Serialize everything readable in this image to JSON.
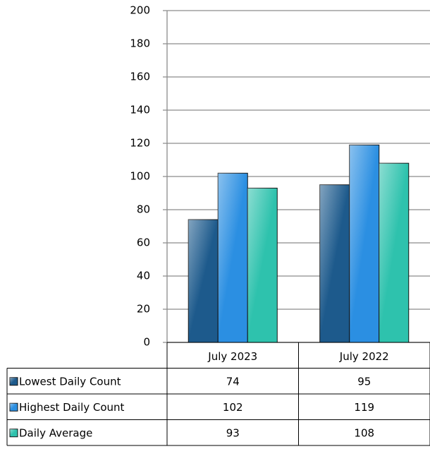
{
  "chart_data": {
    "type": "bar",
    "categories": [
      "July 2023",
      "July 2022"
    ],
    "series": [
      {
        "name": "Lowest Daily Count",
        "color": "#1d5a8c",
        "values": [
          74,
          95
        ]
      },
      {
        "name": "Highest Daily Count",
        "color": "#2b8fe2",
        "values": [
          102,
          119
        ]
      },
      {
        "name": "Daily Average",
        "color": "#2ec2ad",
        "values": [
          93,
          108
        ]
      }
    ],
    "ylim": [
      0,
      200
    ],
    "yticks": [
      0,
      20,
      40,
      60,
      80,
      100,
      120,
      140,
      160,
      180,
      200
    ],
    "grid": true
  }
}
